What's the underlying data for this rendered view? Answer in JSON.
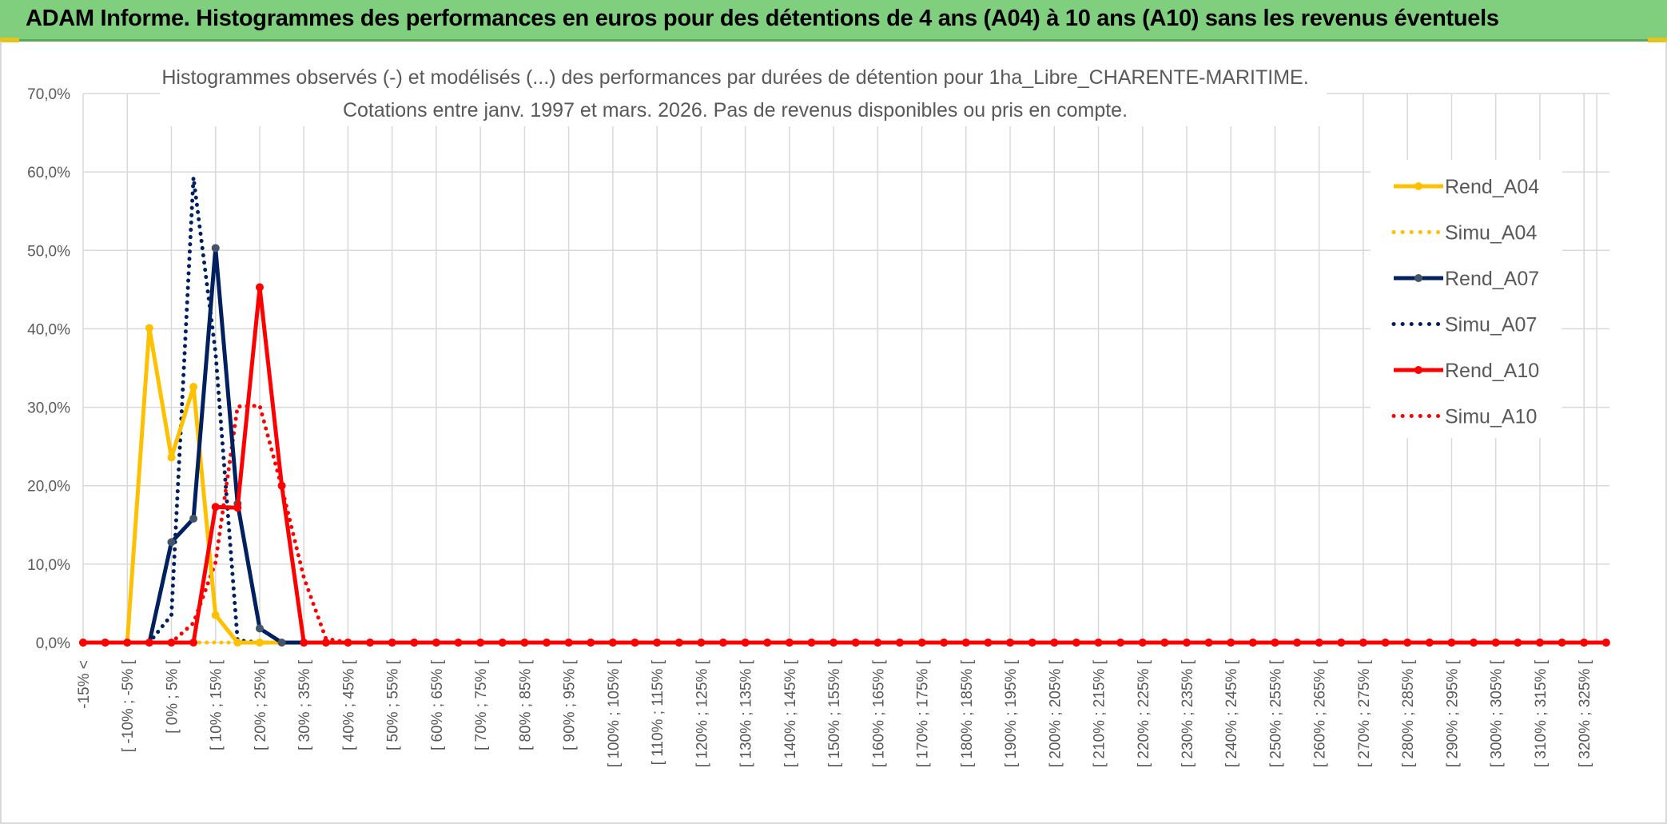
{
  "header": {
    "title": "ADAM Informe. Histogrammes des performances en euros pour des détentions de 4 ans (A04) à 10 ans (A10) sans les revenus éventuels"
  },
  "colors": {
    "header_bg": "#7fcf7f",
    "A04": "#ffc000",
    "A07": "#002060",
    "A10": "#ff0000",
    "grid": "#d9d9d9"
  },
  "chart_data": {
    "type": "line",
    "title_line1": "Histogrammes observés (-) et modélisés (...) des performances par durées de détention pour 1ha_Libre_CHARENTE-MARITIME.",
    "title_line2": "Cotations entre janv. 1997 et mars. 2026. Pas de revenus disponibles ou pris en compte.",
    "ylim": [
      0,
      70
    ],
    "yticks": [
      "0,0%",
      "10,0%",
      "20,0%",
      "30,0%",
      "40,0%",
      "50,0%",
      "60,0%",
      "70,0%"
    ],
    "grid": true,
    "legend_position": "right",
    "categories": [
      "-15% <",
      "[ -15% ; -10% [",
      "[ -10% ; -5% [",
      "[ -5% ; 0% [",
      "[ 0% ; 5% [",
      "[ 5% ; 10% [",
      "[ 10% ; 15% [",
      "[ 15% ; 20% [",
      "[ 20% ; 25% [",
      "[ 25% ; 30% [",
      "[ 30% ; 35% [",
      "[ 35% ; 40% [",
      "[ 40% ; 45% [",
      "[ 45% ; 50% [",
      "[ 50% ; 55% [",
      "[ 55% ; 60% [",
      "[ 60% ; 65% [",
      "[ 65% ; 70% [",
      "[ 70% ; 75% [",
      "[ 75% ; 80% [",
      "[ 80% ; 85% [",
      "[ 85% ; 90% [",
      "[ 90% ; 95% [",
      "[ 95% ; 100% [",
      "[ 100% ; 105% [",
      "[ 105% ; 110% [",
      "[ 110% ; 115% [",
      "[ 115% ; 120% [",
      "[ 120% ; 125% [",
      "[ 125% ; 130% [",
      "[ 130% ; 135% [",
      "[ 135% ; 140% [",
      "[ 140% ; 145% [",
      "[ 145% ; 150% [",
      "[ 150% ; 155% [",
      "[ 155% ; 160% [",
      "[ 160% ; 165% [",
      "[ 165% ; 170% [",
      "[ 170% ; 175% [",
      "[ 175% ; 180% [",
      "[ 180% ; 185% [",
      "[ 185% ; 190% [",
      "[ 190% ; 195% [",
      "[ 195% ; 200% [",
      "[ 200% ; 205% [",
      "[ 205% ; 210% [",
      "[ 210% ; 215% [",
      "[ 215% ; 220% [",
      "[ 220% ; 225% [",
      "[ 225% ; 230% [",
      "[ 230% ; 235% [",
      "[ 235% ; 240% [",
      "[ 240% ; 245% [",
      "[ 245% ; 250% [",
      "[ 250% ; 255% [",
      "[ 255% ; 260% [",
      "[ 260% ; 265% [",
      "[ 265% ; 270% [",
      "[ 270% ; 275% [",
      "[ 275% ; 280% [",
      "[ 280% ; 285% [",
      "[ 285% ; 290% [",
      "[ 290% ; 295% [",
      "[ 295% ; 300% [",
      "[ 300% ; 305% [",
      "[ 305% ; 310% [",
      "[ 310% ; 315% [",
      "[ 315% ; 320% [",
      "[ 320% ; 325% [",
      "[ 325% ; 330% ["
    ],
    "visible_tick_labels": [
      "-15% <",
      "[ -10% ; -5% [",
      "[ 0% ; 5% [",
      "[ 10% ; 15% [",
      "[ 20% ; 25% [",
      "[ 30% ; 35% [",
      "[ 40% ; 45% [",
      "[ 50% ; 55% [",
      "[ 60% ; 65% [",
      "[ 70% ; 75% [",
      "[ 80% ; 85% [",
      "[ 90% ; 95% [",
      "[ 100% ; 105% [",
      "[ 110% ; 115% [",
      "[ 120% ; 125% [",
      "[ 130% ; 135% [",
      "[ 140% ; 145% [",
      "[ 150% ; 155% [",
      "[ 160% ; 165% [",
      "[ 170% ; 175% [",
      "[ 180% ; 185% [",
      "[ 190% ; 195% [",
      "[ 200% ; 205% [",
      "[ 210% ; 215% [",
      "[ 220% ; 225% [",
      "[ 230% ; 235% [",
      "[ 240% ; 245% [",
      "[ 250% ; 255% [",
      "[ 260% ; 265% [",
      "[ 270% ; 275% [",
      "[ 280% ; 285% [",
      "[ 290% ; 295% [",
      "[ 300% ; 305% [",
      "[ 310% ; 315% [",
      "[ 320% ; 325% ["
    ],
    "series": [
      {
        "name": "Rend_A04",
        "style": "solid",
        "color": "#ffc000",
        "values": [
          0,
          0,
          0,
          40.1,
          23.6,
          32.6,
          3.5,
          0,
          0,
          0,
          0,
          0,
          0,
          0,
          0,
          0,
          0,
          0,
          0,
          0,
          0,
          0,
          0,
          0,
          0,
          0,
          0,
          0,
          0,
          0,
          0,
          0,
          0,
          0,
          0,
          0,
          0,
          0,
          0,
          0,
          0,
          0,
          0,
          0,
          0,
          0,
          0,
          0,
          0,
          0,
          0,
          0,
          0,
          0,
          0,
          0,
          0,
          0,
          0,
          0,
          0,
          0,
          0,
          0,
          0,
          0,
          0,
          0,
          0,
          0
        ]
      },
      {
        "name": "Simu_A04",
        "style": "dotted",
        "color": "#ffc000",
        "values": [
          0,
          0,
          0,
          0,
          0,
          0,
          0,
          0,
          0,
          0,
          0,
          0,
          0,
          0,
          0,
          0,
          0,
          0,
          0,
          0,
          0,
          0,
          0,
          0,
          0,
          0,
          0,
          0,
          0,
          0,
          0,
          0,
          0,
          0,
          0,
          0,
          0,
          0,
          0,
          0,
          0,
          0,
          0,
          0,
          0,
          0,
          0,
          0,
          0,
          0,
          0,
          0,
          0,
          0,
          0,
          0,
          0,
          0,
          0,
          0,
          0,
          0,
          0,
          0,
          0,
          0,
          0,
          0,
          0,
          0
        ]
      },
      {
        "name": "Rend_A07",
        "style": "solid",
        "color": "#002060",
        "values": [
          0,
          0,
          0,
          0,
          12.8,
          15.8,
          50.3,
          17.7,
          1.8,
          0,
          0,
          0,
          0,
          0,
          0,
          0,
          0,
          0,
          0,
          0,
          0,
          0,
          0,
          0,
          0,
          0,
          0,
          0,
          0,
          0,
          0,
          0,
          0,
          0,
          0,
          0,
          0,
          0,
          0,
          0,
          0,
          0,
          0,
          0,
          0,
          0,
          0,
          0,
          0,
          0,
          0,
          0,
          0,
          0,
          0,
          0,
          0,
          0,
          0,
          0,
          0,
          0,
          0,
          0,
          0,
          0,
          0,
          0,
          0,
          0
        ]
      },
      {
        "name": "Simu_A07",
        "style": "dotted",
        "color": "#002060",
        "values": [
          0,
          0,
          0,
          0,
          3.5,
          59.3,
          37.0,
          0.3,
          0,
          0,
          0,
          0,
          0,
          0,
          0,
          0,
          0,
          0,
          0,
          0,
          0,
          0,
          0,
          0,
          0,
          0,
          0,
          0,
          0,
          0,
          0,
          0,
          0,
          0,
          0,
          0,
          0,
          0,
          0,
          0,
          0,
          0,
          0,
          0,
          0,
          0,
          0,
          0,
          0,
          0,
          0,
          0,
          0,
          0,
          0,
          0,
          0,
          0,
          0,
          0,
          0,
          0,
          0,
          0,
          0,
          0,
          0,
          0,
          0,
          0
        ]
      },
      {
        "name": "Rend_A10",
        "style": "solid",
        "color": "#ff0000",
        "values": [
          0,
          0,
          0,
          0,
          0,
          0,
          17.3,
          17.2,
          45.3,
          20.0,
          0,
          0,
          0,
          0,
          0,
          0,
          0,
          0,
          0,
          0,
          0,
          0,
          0,
          0,
          0,
          0,
          0,
          0,
          0,
          0,
          0,
          0,
          0,
          0,
          0,
          0,
          0,
          0,
          0,
          0,
          0,
          0,
          0,
          0,
          0,
          0,
          0,
          0,
          0,
          0,
          0,
          0,
          0,
          0,
          0,
          0,
          0,
          0,
          0,
          0,
          0,
          0,
          0,
          0,
          0,
          0,
          0,
          0,
          0,
          0
        ]
      },
      {
        "name": "Simu_A10",
        "style": "dotted",
        "color": "#ff0000",
        "values": [
          0,
          0,
          0,
          0,
          0,
          2.5,
          10.2,
          30.1,
          30.2,
          19.8,
          8.3,
          0.5,
          0,
          0,
          0,
          0,
          0,
          0,
          0,
          0,
          0,
          0,
          0,
          0,
          0,
          0,
          0,
          0,
          0,
          0,
          0,
          0,
          0,
          0,
          0,
          0,
          0,
          0,
          0,
          0,
          0,
          0,
          0,
          0,
          0,
          0,
          0,
          0,
          0,
          0,
          0,
          0,
          0,
          0,
          0,
          0,
          0,
          0,
          0,
          0,
          0,
          0,
          0,
          0,
          0,
          0,
          0,
          0,
          0,
          0
        ]
      }
    ]
  }
}
